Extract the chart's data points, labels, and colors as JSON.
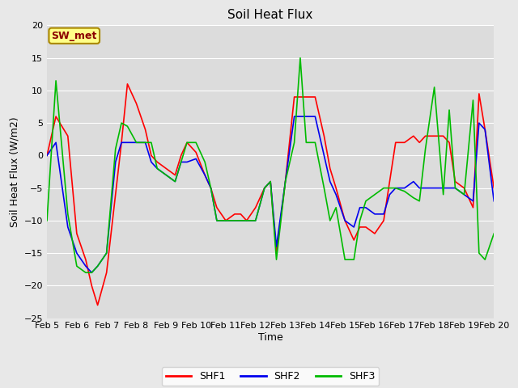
{
  "title": "Soil Heat Flux",
  "xlabel": "Time",
  "ylabel": "Soil Heat Flux (W/m2)",
  "ylim": [
    -25,
    20
  ],
  "yticks": [
    -25,
    -20,
    -15,
    -10,
    -5,
    0,
    5,
    10,
    15,
    20
  ],
  "annotation_text": "SW_met",
  "annotation_color": "#8B0000",
  "annotation_bg": "#FFFF88",
  "annotation_border": "#AA8800",
  "fig_bg_color": "#E8E8E8",
  "plot_bg_color": "#DCDCDC",
  "grid_color": "#FFFFFF",
  "line_colors": {
    "SHF1": "#FF0000",
    "SHF2": "#0000EE",
    "SHF3": "#00BB00"
  },
  "xtick_labels": [
    "Feb 5",
    "Feb 6",
    "Feb 7",
    "Feb 8",
    "Feb 9",
    "Feb 10",
    "Feb 11",
    "Feb 12",
    "Feb 13",
    "Feb 14",
    "Feb 15",
    "Feb 16",
    "Feb 17",
    "Feb 18",
    "Feb 19",
    "Feb 20"
  ],
  "SHF1_x": [
    0,
    0.3,
    0.7,
    1.0,
    1.3,
    1.5,
    1.7,
    2.0,
    2.3,
    2.5,
    2.7,
    3.0,
    3.3,
    3.5,
    3.7,
    4.0,
    4.3,
    4.5,
    4.7,
    5.0,
    5.3,
    5.5,
    5.7,
    6.0,
    6.3,
    6.5,
    6.7,
    7.0,
    7.3,
    7.5,
    7.7,
    8.0,
    8.3,
    8.5,
    8.7,
    9.0,
    9.3,
    9.5,
    9.7,
    10.0,
    10.3,
    10.5,
    10.7,
    11.0,
    11.3,
    11.5,
    11.7,
    12.0,
    12.3,
    12.5,
    12.7,
    13.0,
    13.3,
    13.5,
    13.7,
    14.0,
    14.3,
    14.5,
    14.7,
    15.0
  ],
  "SHF1": [
    0,
    6,
    3,
    -12,
    -16,
    -20,
    -23,
    -18,
    -6,
    2,
    11,
    8,
    4,
    0,
    -1,
    -2,
    -3,
    0,
    2,
    0.5,
    -3,
    -5,
    -8,
    -10,
    -9,
    -9,
    -10,
    -8,
    -5,
    -4,
    -15,
    -4,
    9,
    9,
    9,
    9,
    3,
    -2,
    -5,
    -10,
    -13,
    -11,
    -11,
    -12,
    -10,
    -4,
    2,
    2,
    3,
    2,
    3,
    3,
    3,
    2,
    -4,
    -5,
    -8,
    9.5,
    4,
    -5
  ],
  "SHF2_x": [
    0,
    0.3,
    0.7,
    1.0,
    1.3,
    1.5,
    1.7,
    2.0,
    2.3,
    2.5,
    2.7,
    3.0,
    3.3,
    3.5,
    3.7,
    4.0,
    4.3,
    4.5,
    4.7,
    5.0,
    5.3,
    5.5,
    5.7,
    6.0,
    6.3,
    6.5,
    6.7,
    7.0,
    7.3,
    7.5,
    7.7,
    8.0,
    8.3,
    8.5,
    8.7,
    9.0,
    9.3,
    9.5,
    9.7,
    10.0,
    10.3,
    10.5,
    10.7,
    11.0,
    11.3,
    11.5,
    11.7,
    12.0,
    12.3,
    12.5,
    12.7,
    13.0,
    13.3,
    13.5,
    13.7,
    14.0,
    14.3,
    14.5,
    14.7,
    15.0
  ],
  "SHF2": [
    0,
    2,
    -11,
    -15,
    -17,
    -18,
    -17,
    -15,
    -1,
    2,
    2,
    2,
    2,
    -1,
    -2,
    -3,
    -4,
    -1,
    -1,
    -0.5,
    -3,
    -5,
    -10,
    -10,
    -10,
    -10,
    -10,
    -10,
    -5,
    -4,
    -14,
    -4,
    6,
    6,
    6,
    6,
    0,
    -4,
    -6,
    -10,
    -11,
    -8,
    -8,
    -9,
    -9,
    -6,
    -5,
    -5,
    -4,
    -5,
    -5,
    -5,
    -5,
    -5,
    -5,
    -6,
    -7,
    5,
    4,
    -7
  ],
  "SHF3_x": [
    0,
    0.3,
    0.7,
    1.0,
    1.3,
    1.5,
    1.7,
    2.0,
    2.3,
    2.5,
    2.7,
    3.0,
    3.3,
    3.5,
    3.7,
    4.0,
    4.3,
    4.5,
    4.7,
    5.0,
    5.3,
    5.5,
    5.7,
    6.0,
    6.3,
    6.5,
    6.7,
    7.0,
    7.3,
    7.5,
    7.7,
    8.0,
    8.3,
    8.5,
    8.7,
    9.0,
    9.3,
    9.5,
    9.7,
    10.0,
    10.3,
    10.5,
    10.7,
    11.0,
    11.3,
    11.5,
    11.7,
    12.0,
    12.3,
    12.5,
    12.7,
    13.0,
    13.3,
    13.5,
    13.7,
    14.0,
    14.3,
    14.5,
    14.7,
    15.0
  ],
  "SHF3": [
    -10,
    11.5,
    -9,
    -17,
    -18,
    -18,
    -17,
    -15,
    1,
    5,
    4.5,
    2,
    2,
    2,
    -2,
    -3,
    -4,
    -1,
    2,
    2,
    -1,
    -5,
    -10,
    -10,
    -10,
    -10,
    -10,
    -10,
    -5,
    -4,
    -16,
    -4,
    2,
    15,
    2,
    2,
    -5,
    -10,
    -8,
    -16,
    -16,
    -10,
    -7,
    -6,
    -5,
    -5,
    -5,
    -5.5,
    -6.5,
    -7,
    1,
    10.5,
    -6,
    7,
    -5,
    -6,
    8.5,
    -15,
    -16,
    -12
  ]
}
